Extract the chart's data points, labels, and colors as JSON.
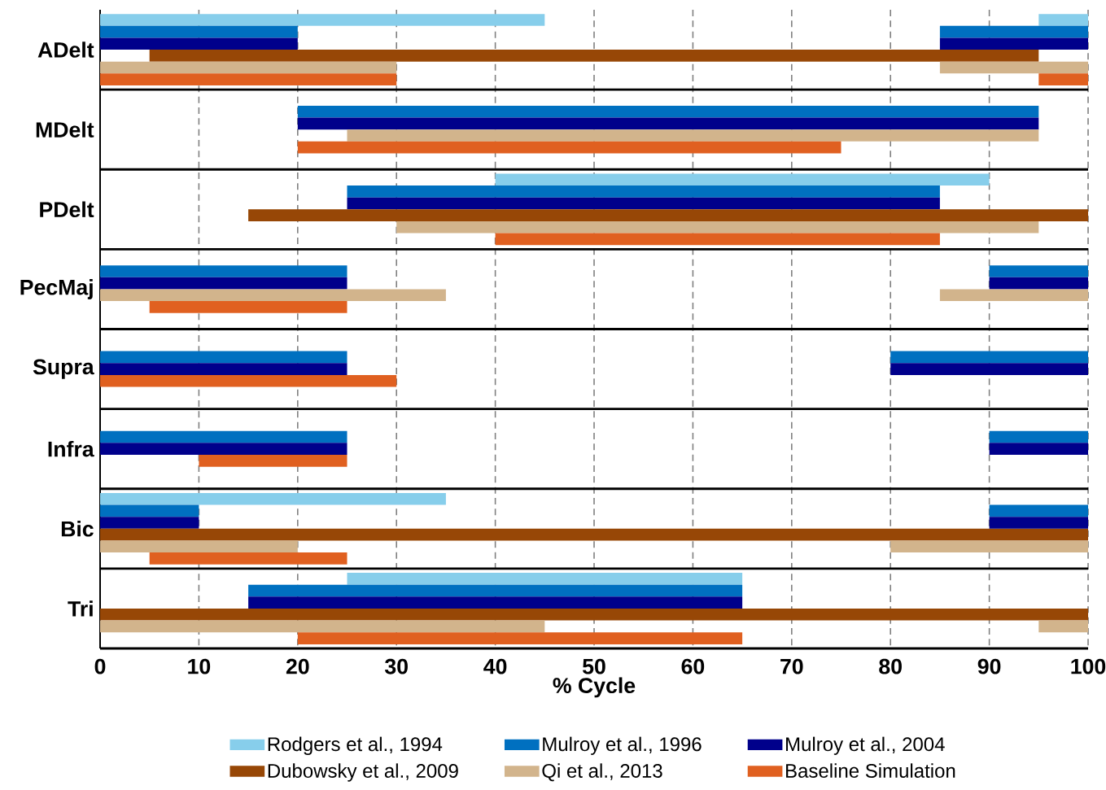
{
  "chart_data": {
    "type": "bar",
    "orientation": "horizontal",
    "xlabel": "% Cycle",
    "categories": [
      "ADelt",
      "MDelt",
      "PDelt",
      "PecMaj",
      "Supra",
      "Infra",
      "Bic",
      "Tri"
    ],
    "xlim": [
      0,
      100
    ],
    "xticks": [
      0,
      10,
      20,
      30,
      40,
      50,
      60,
      70,
      80,
      90,
      100
    ],
    "grid": "x",
    "legend": "bottom",
    "series": [
      {
        "name": "Rodgers et al., 1994",
        "color": "#87ceeb",
        "base": [
          0,
          null,
          40,
          null,
          null,
          null,
          0,
          25
        ],
        "values": [
          45,
          null,
          50,
          null,
          null,
          null,
          35,
          40
        ]
      },
      {
        "name": "Mulroy et al., 1996",
        "color": "#0070c0",
        "base": [
          0,
          20,
          25,
          0,
          0,
          0,
          0,
          15
        ],
        "values": [
          20,
          75,
          60,
          25,
          25,
          25,
          10,
          50
        ]
      },
      {
        "name": "Mulroy et al., 2004",
        "color": "#00008b",
        "base": [
          0,
          20,
          25,
          0,
          0,
          0,
          0,
          15
        ],
        "values": [
          20,
          75,
          60,
          25,
          25,
          25,
          10,
          50
        ]
      },
      {
        "name": "Dubowsky et al., 2009",
        "color": "#974706",
        "base": [
          5,
          null,
          15,
          null,
          null,
          null,
          0,
          0
        ],
        "values": [
          90,
          null,
          85,
          null,
          null,
          null,
          100,
          100
        ]
      },
      {
        "name": "Qi et al., 2013",
        "color": "#d2b48c",
        "base": [
          0,
          25,
          30,
          0,
          null,
          null,
          0,
          0
        ],
        "values": [
          30,
          70,
          65,
          35,
          null,
          null,
          20,
          45
        ]
      },
      {
        "name": "Baseline Simulation",
        "color": "#e06020",
        "base": [
          0,
          20,
          40,
          5,
          0,
          10,
          5,
          20
        ],
        "values": [
          30,
          55,
          45,
          20,
          30,
          15,
          20,
          45
        ]
      },
      {
        "color": "#87ceeb",
        "base": [
          95,
          null,
          null,
          null,
          null,
          null,
          null,
          null
        ],
        "values": [
          5,
          null,
          null,
          null,
          null,
          null,
          null,
          null
        ]
      },
      {
        "color": "#0070c0",
        "base": [
          85,
          null,
          null,
          90,
          80,
          90,
          90,
          null
        ],
        "values": [
          15,
          null,
          null,
          10,
          20,
          10,
          10,
          null
        ]
      },
      {
        "color": "#00008b",
        "base": [
          85,
          null,
          null,
          90,
          80,
          90,
          90,
          null
        ],
        "values": [
          15,
          null,
          null,
          10,
          20,
          10,
          10,
          null
        ]
      },
      {
        "color": "#d2b48c",
        "base": [
          85,
          null,
          null,
          85,
          null,
          null,
          80,
          95
        ],
        "values": [
          15,
          null,
          null,
          15,
          null,
          null,
          20,
          5
        ]
      },
      {
        "color": "#e06020",
        "base": [
          95,
          null,
          null,
          null,
          null,
          null,
          null,
          null
        ],
        "values": [
          5,
          null,
          null,
          null,
          null,
          null,
          null,
          null
        ]
      }
    ]
  }
}
